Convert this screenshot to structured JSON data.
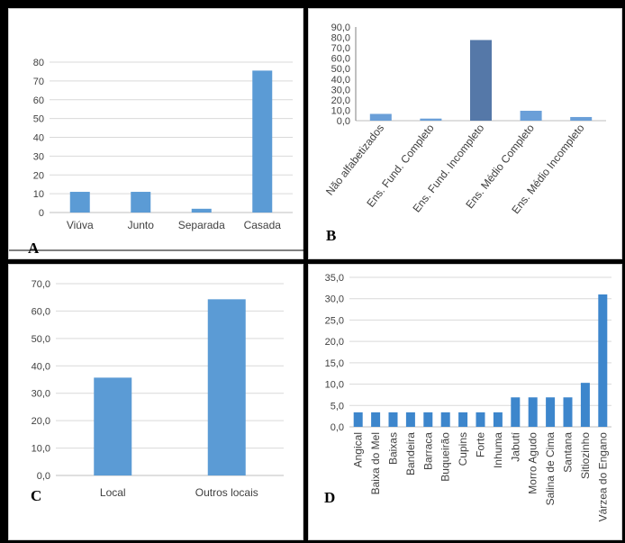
{
  "chart_data": [
    {
      "panel": "A",
      "type": "bar",
      "categories": [
        "Viúva",
        "Junto",
        "Separada",
        "Casada"
      ],
      "values": [
        11,
        11,
        2,
        75.5
      ],
      "ylim": [
        0,
        80
      ],
      "yticks": [
        "0",
        "10",
        "20",
        "30",
        "40",
        "50",
        "60",
        "70",
        "80"
      ],
      "color": "#5b9bd5",
      "grid": true
    },
    {
      "panel": "B",
      "type": "bar",
      "categories": [
        "Não alfabetizados",
        "Ens. Fund. Completo",
        "Ens. Fund. Incompleto",
        "Ens. Médio Completo",
        "Ens. Médio Incompleto"
      ],
      "values": [
        6.5,
        2.0,
        77.5,
        9.5,
        3.5
      ],
      "ylim": [
        0,
        90
      ],
      "yticks": [
        "0,0",
        "10,0",
        "20,0",
        "30,0",
        "40,0",
        "50,0",
        "60,0",
        "70,0",
        "80,0",
        "90,0"
      ],
      "color": "#6a9fd8",
      "highlight_color": "#5578a8",
      "grid": false
    },
    {
      "panel": "C",
      "type": "bar",
      "categories": [
        "Local",
        "Outros locais"
      ],
      "values": [
        35.7,
        64.3
      ],
      "ylim": [
        0,
        70
      ],
      "yticks": [
        "0,0",
        "10,0",
        "20,0",
        "30,0",
        "40,0",
        "50,0",
        "60,0",
        "70,0"
      ],
      "color": "#5b9bd5",
      "grid": true
    },
    {
      "panel": "D",
      "type": "bar",
      "categories": [
        "Angical",
        "Baixa do Mel",
        "Baixas",
        "Bandeira",
        "Barraca",
        "Buqueirão",
        "Cupins",
        "Forte",
        "Inhuma",
        "Jabutí",
        "Morro Agudo",
        "Salina de Cima",
        "Santana",
        "Sitiozinho",
        "Várzea do Engano"
      ],
      "values": [
        3.4,
        3.4,
        3.4,
        3.4,
        3.4,
        3.4,
        3.4,
        3.4,
        3.4,
        6.9,
        6.9,
        6.9,
        6.9,
        10.3,
        31.0
      ],
      "ylim": [
        0,
        35
      ],
      "yticks": [
        "0,0",
        "5,0",
        "10,0",
        "15,0",
        "20,0",
        "25,0",
        "30,0",
        "35,0"
      ],
      "color": "#3d86cc",
      "grid": true
    }
  ],
  "panel_labels": {
    "A": "A",
    "B": "B",
    "C": "C",
    "D": "D"
  }
}
